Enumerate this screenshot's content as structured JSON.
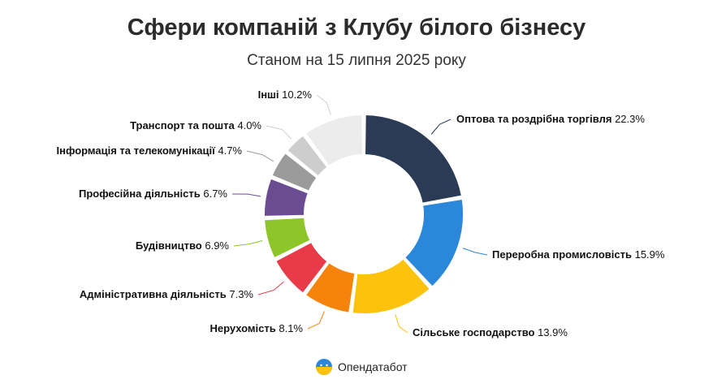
{
  "title": "Сфери компаній з Клубу білого бізнесу",
  "subtitle": "Станом на 15 липня 2025 року",
  "brand": {
    "name": "Опендатабот",
    "logo_icon": "opendatabot-logo-icon"
  },
  "chart_data": {
    "type": "pie",
    "title": "Сфери компаній з Клубу білого бізнесу",
    "subtitle": "Станом на 15 липня 2025 року",
    "unit": "%",
    "categories": [
      "Оптова та роздрібна торгівля",
      "Переробна промисловість",
      "Сільське господарство",
      "Нерухомість",
      "Адміністративна діяльність",
      "Будівництво",
      "Професійна діяльність",
      "Інформація та телекомунікації",
      "Транспорт та пошта",
      "Інші"
    ],
    "values": [
      22.3,
      15.9,
      13.9,
      8.1,
      7.3,
      6.9,
      6.7,
      4.7,
      4.0,
      10.2
    ],
    "value_labels": [
      "22.3%",
      "15.9%",
      "13.9%",
      "8.1%",
      "7.3%",
      "6.9%",
      "6.7%",
      "4.7%",
      "4.0%",
      "10.2%"
    ],
    "colors": [
      "#2b3a55",
      "#2b87d9",
      "#fcc20c",
      "#f6830c",
      "#e83a48",
      "#8ec62a",
      "#6a4c93",
      "#9b9b9b",
      "#cdcdcd",
      "#ececec"
    ],
    "donut": true,
    "legend": "none",
    "start_angle_deg": 0,
    "direction": "clockwise"
  }
}
